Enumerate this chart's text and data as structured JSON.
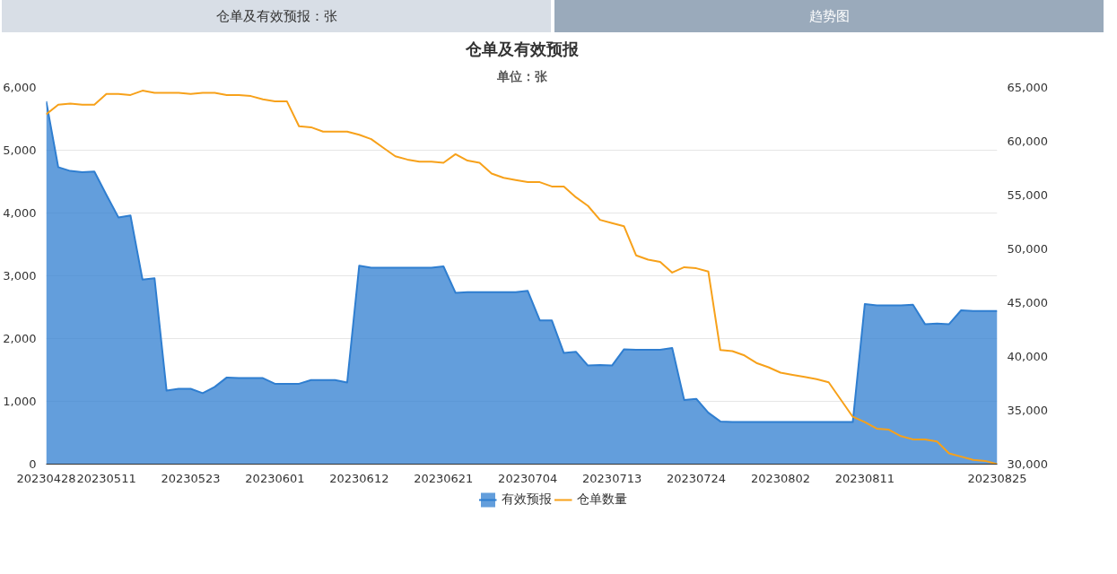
{
  "chart_data": {
    "type": "line",
    "title": "仓单及有效预报",
    "subtitle": "单位：张",
    "annotations": [
      "仓单及有效预报：张",
      "趋势图"
    ],
    "categories": [
      "20230428",
      null,
      null,
      null,
      null,
      "20230511",
      null,
      null,
      null,
      null,
      null,
      null,
      "20230523",
      null,
      null,
      null,
      null,
      null,
      null,
      "20230601",
      null,
      null,
      null,
      null,
      null,
      null,
      "20230612",
      null,
      null,
      null,
      null,
      null,
      null,
      "20230621",
      null,
      null,
      null,
      null,
      null,
      null,
      "20230704",
      null,
      null,
      null,
      null,
      null,
      null,
      "20230713",
      null,
      null,
      null,
      null,
      null,
      null,
      "20230724",
      null,
      null,
      null,
      null,
      null,
      null,
      "20230802",
      null,
      null,
      null,
      null,
      null,
      null,
      "20230811",
      null,
      null,
      null,
      null,
      null,
      null,
      null,
      null,
      null,
      null,
      "20230825"
    ],
    "series": [
      {
        "name": "有效预报",
        "type": "area",
        "color": "#2f7ed0",
        "values": [
          5780,
          4730,
          4670,
          4650,
          4660,
          4290,
          3930,
          3960,
          2940,
          2960,
          1170,
          1200,
          1200,
          1130,
          1230,
          1380,
          1370,
          1370,
          1370,
          1280,
          1280,
          1280,
          1340,
          1340,
          1340,
          1300,
          3160,
          3130,
          3130,
          3130,
          3130,
          3130,
          3130,
          3150,
          2730,
          2740,
          2740,
          2740,
          2740,
          2740,
          2760,
          2290,
          2290,
          1770,
          1790,
          1570,
          1580,
          1570,
          1830,
          1820,
          1820,
          1820,
          1850,
          1020,
          1040,
          820,
          680,
          670,
          670,
          670,
          670,
          670,
          670,
          670,
          670,
          670,
          670,
          670,
          2550,
          2530,
          2530,
          2530,
          2540,
          2230,
          2240,
          2230,
          2450,
          2440,
          2440,
          2440
        ]
      },
      {
        "name": "仓单数量",
        "axis": "y2",
        "color": "#f7a11a",
        "values": [
          62500,
          63400,
          63500,
          63400,
          63400,
          64400,
          64400,
          64300,
          64700,
          64500,
          64500,
          64500,
          64400,
          64500,
          64500,
          64300,
          64300,
          64200,
          63900,
          63700,
          63700,
          61400,
          61300,
          60900,
          60900,
          60900,
          60600,
          60200,
          59400,
          58600,
          58300,
          58100,
          58100,
          58000,
          58800,
          58200,
          58000,
          57000,
          56600,
          56400,
          56200,
          56200,
          55800,
          55800,
          54800,
          54000,
          52700,
          52400,
          52100,
          49400,
          49000,
          48800,
          47800,
          48300,
          48200,
          47900,
          40600,
          40500,
          40100,
          39400,
          39000,
          38500,
          38300,
          38100,
          37900,
          37600,
          36000,
          34400,
          33900,
          33300,
          33200,
          32600,
          32300,
          32300,
          32100,
          31000,
          30700,
          30400,
          30300,
          30000
        ]
      }
    ],
    "ylim": [
      0,
      6000
    ],
    "yticks": [
      0,
      {
        "value": 1000,
        "label": "1,000"
      },
      {
        "value": 2000,
        "label": "2,000"
      },
      {
        "value": 3000,
        "label": "3,000"
      },
      {
        "value": 4000,
        "label": "4,000"
      },
      {
        "value": 5000,
        "label": "5,000"
      },
      {
        "value": 6000,
        "label": "6,000"
      }
    ],
    "y2lim": [
      30000,
      65000
    ],
    "y2ticks": [
      {
        "value": 30000,
        "label": "30,000"
      },
      {
        "value": 35000,
        "label": "35,000"
      },
      {
        "value": 40000,
        "label": "40,000"
      },
      {
        "value": 45000,
        "label": "45,000"
      },
      {
        "value": 50000,
        "label": "50,000"
      },
      {
        "value": 55000,
        "label": "55,000"
      },
      {
        "value": 60000,
        "label": "60,000"
      },
      {
        "value": 65000,
        "label": "65,000"
      }
    ],
    "grid": "y",
    "legend": "bottom"
  }
}
